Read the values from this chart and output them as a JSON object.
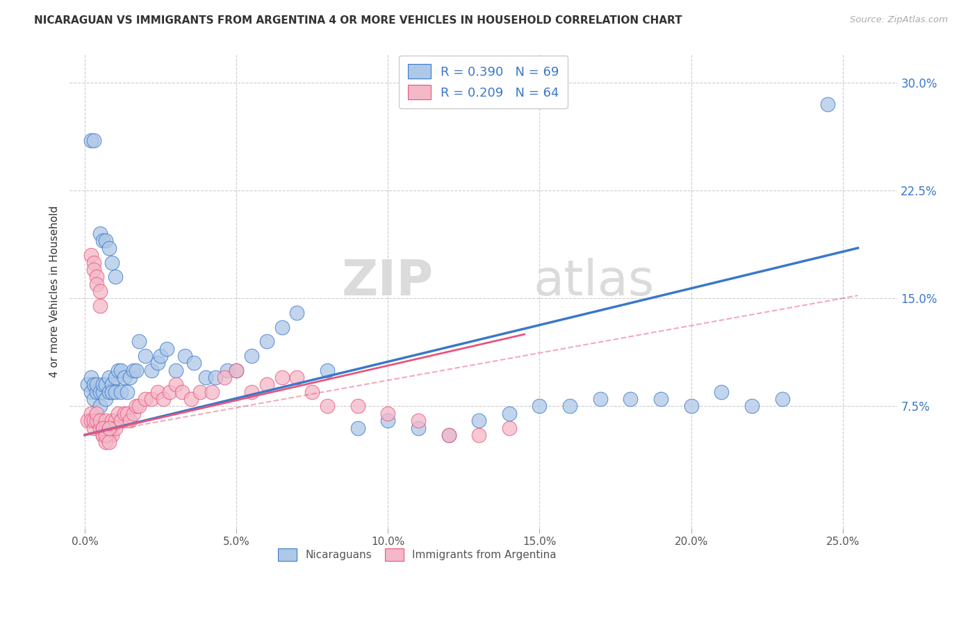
{
  "title": "NICARAGUAN VS IMMIGRANTS FROM ARGENTINA 4 OR MORE VEHICLES IN HOUSEHOLD CORRELATION CHART",
  "source": "Source: ZipAtlas.com",
  "xlabel_ticks": [
    "0.0%",
    "5.0%",
    "10.0%",
    "15.0%",
    "20.0%",
    "25.0%"
  ],
  "xlabel_vals": [
    0.0,
    0.05,
    0.1,
    0.15,
    0.2,
    0.25
  ],
  "ylabel_ticks": [
    "7.5%",
    "15.0%",
    "22.5%",
    "30.0%"
  ],
  "ylabel_vals": [
    0.075,
    0.15,
    0.225,
    0.3
  ],
  "ylabel_label": "4 or more Vehicles in Household",
  "legend_labels": [
    "Nicaraguans",
    "Immigrants from Argentina"
  ],
  "blue_R": 0.39,
  "blue_N": 69,
  "pink_R": 0.209,
  "pink_N": 64,
  "blue_color": "#aec8e8",
  "pink_color": "#f4b8c8",
  "blue_line_color": "#3a78c9",
  "pink_line_color": "#e8547a",
  "watermark_zip": "ZIP",
  "watermark_atlas": "atlas",
  "xlim": [
    -0.005,
    0.268
  ],
  "ylim": [
    -0.01,
    0.32
  ],
  "background_color": "#ffffff",
  "grid_color": "#cccccc",
  "blue_x": [
    0.001,
    0.002,
    0.002,
    0.003,
    0.003,
    0.004,
    0.004,
    0.005,
    0.005,
    0.006,
    0.006,
    0.007,
    0.007,
    0.008,
    0.008,
    0.009,
    0.009,
    0.01,
    0.01,
    0.011,
    0.012,
    0.012,
    0.013,
    0.014,
    0.015,
    0.016,
    0.017,
    0.018,
    0.02,
    0.022,
    0.024,
    0.025,
    0.027,
    0.03,
    0.033,
    0.036,
    0.04,
    0.043,
    0.047,
    0.05,
    0.055,
    0.06,
    0.065,
    0.07,
    0.08,
    0.09,
    0.1,
    0.11,
    0.12,
    0.13,
    0.14,
    0.15,
    0.16,
    0.17,
    0.18,
    0.19,
    0.2,
    0.21,
    0.22,
    0.23,
    0.005,
    0.006,
    0.007,
    0.008,
    0.009,
    0.01,
    0.002,
    0.003,
    0.245
  ],
  "blue_y": [
    0.09,
    0.085,
    0.095,
    0.08,
    0.09,
    0.085,
    0.09,
    0.085,
    0.075,
    0.085,
    0.09,
    0.08,
    0.09,
    0.085,
    0.095,
    0.09,
    0.085,
    0.095,
    0.085,
    0.1,
    0.085,
    0.1,
    0.095,
    0.085,
    0.095,
    0.1,
    0.1,
    0.12,
    0.11,
    0.1,
    0.105,
    0.11,
    0.115,
    0.1,
    0.11,
    0.105,
    0.095,
    0.095,
    0.1,
    0.1,
    0.11,
    0.12,
    0.13,
    0.14,
    0.1,
    0.06,
    0.065,
    0.06,
    0.055,
    0.065,
    0.07,
    0.075,
    0.075,
    0.08,
    0.08,
    0.08,
    0.075,
    0.085,
    0.075,
    0.08,
    0.195,
    0.19,
    0.19,
    0.185,
    0.175,
    0.165,
    0.26,
    0.26,
    0.285
  ],
  "pink_x": [
    0.001,
    0.002,
    0.002,
    0.003,
    0.003,
    0.004,
    0.004,
    0.005,
    0.005,
    0.006,
    0.006,
    0.007,
    0.007,
    0.008,
    0.008,
    0.009,
    0.009,
    0.01,
    0.01,
    0.011,
    0.012,
    0.013,
    0.014,
    0.015,
    0.016,
    0.017,
    0.018,
    0.02,
    0.022,
    0.024,
    0.026,
    0.028,
    0.03,
    0.032,
    0.035,
    0.038,
    0.042,
    0.046,
    0.05,
    0.055,
    0.06,
    0.065,
    0.07,
    0.075,
    0.08,
    0.09,
    0.1,
    0.11,
    0.12,
    0.13,
    0.14,
    0.002,
    0.003,
    0.003,
    0.004,
    0.004,
    0.005,
    0.005,
    0.006,
    0.006,
    0.007,
    0.007,
    0.008,
    0.008
  ],
  "pink_y": [
    0.065,
    0.07,
    0.065,
    0.06,
    0.065,
    0.065,
    0.07,
    0.06,
    0.065,
    0.055,
    0.06,
    0.06,
    0.065,
    0.055,
    0.06,
    0.065,
    0.055,
    0.065,
    0.06,
    0.07,
    0.065,
    0.07,
    0.07,
    0.065,
    0.07,
    0.075,
    0.075,
    0.08,
    0.08,
    0.085,
    0.08,
    0.085,
    0.09,
    0.085,
    0.08,
    0.085,
    0.085,
    0.095,
    0.1,
    0.085,
    0.09,
    0.095,
    0.095,
    0.085,
    0.075,
    0.075,
    0.07,
    0.065,
    0.055,
    0.055,
    0.06,
    0.18,
    0.175,
    0.17,
    0.165,
    0.16,
    0.155,
    0.145,
    0.055,
    0.06,
    0.05,
    0.055,
    0.05,
    0.06
  ],
  "blue_line_x": [
    0.0,
    0.255
  ],
  "blue_line_y": [
    0.055,
    0.185
  ],
  "pink_line_x": [
    0.0,
    0.145
  ],
  "pink_line_y": [
    0.055,
    0.125
  ]
}
